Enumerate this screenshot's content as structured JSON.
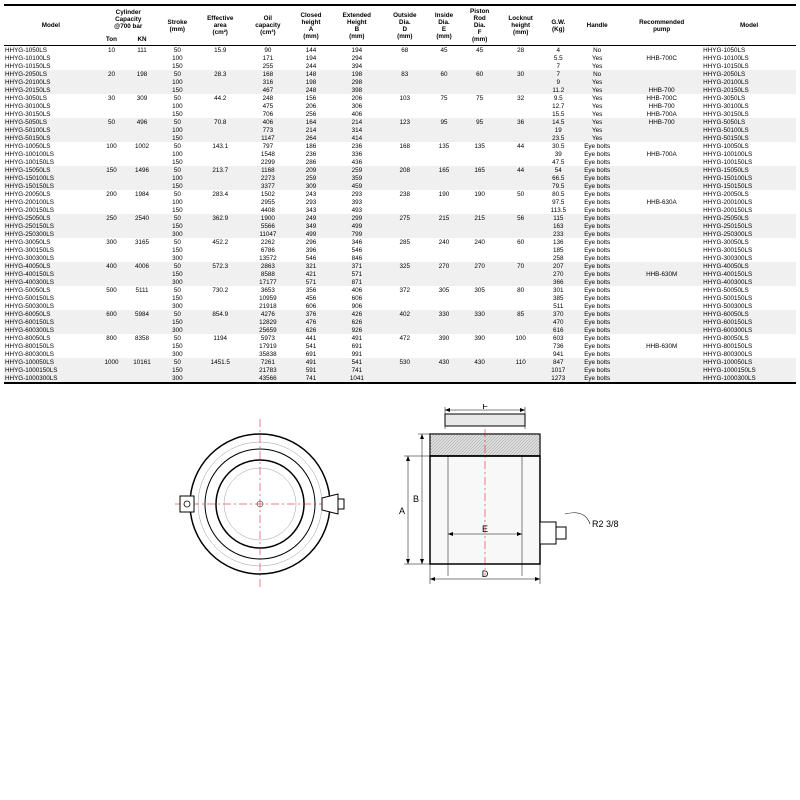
{
  "headers": [
    "Model",
    "Cylinder\nCapacity\n@700 bar",
    "",
    "Stroke\n(mm)",
    "Effective\narea\n(cm²)",
    "Oil\ncapacity\n(cm³)",
    "Closed\nheight\nA\n(mm)",
    "Extended\nHeight\nB\n(mm)",
    "Outside\nDia.\nD\n(mm)",
    "Inside\nDia.\nE\n(mm)",
    "Piston\nRod\nDia.\nF\n(mm)",
    "Locknut\nheight\n(mm)",
    "G.W.\n(Kg)",
    "Handle",
    "Recommended\npump",
    "Model"
  ],
  "sub": [
    "Ton",
    "KN"
  ],
  "rows": [
    {
      "alt": 0,
      "c": [
        "HHYG-1050LS",
        "10",
        "111",
        "50",
        "15.9",
        "90",
        "144",
        "194",
        "68",
        "45",
        "45",
        "28",
        "4",
        "No",
        "",
        "HHYG-1050LS"
      ]
    },
    {
      "alt": 0,
      "c": [
        "HHYG-10100LS",
        "",
        "",
        "100",
        "",
        "171",
        "194",
        "294",
        "",
        "",
        "",
        "",
        "5.5",
        "Yes",
        "HHB-700C",
        "HHYG-10100LS"
      ]
    },
    {
      "alt": 0,
      "c": [
        "HHYG-10150LS",
        "",
        "",
        "150",
        "",
        "255",
        "244",
        "394",
        "",
        "",
        "",
        "",
        "7",
        "Yes",
        "",
        "HHYG-10150LS"
      ]
    },
    {
      "alt": 1,
      "c": [
        "HHYG-2050LS",
        "20",
        "198",
        "50",
        "28.3",
        "168",
        "148",
        "198",
        "83",
        "60",
        "60",
        "30",
        "7",
        "No",
        "",
        "HHYG-2050LS"
      ]
    },
    {
      "alt": 1,
      "c": [
        "HHYG-20100LS",
        "",
        "",
        "100",
        "",
        "316",
        "198",
        "298",
        "",
        "",
        "",
        "",
        "9",
        "Yes",
        "",
        "HHYG-20100LS"
      ]
    },
    {
      "alt": 1,
      "c": [
        "HHYG-20150LS",
        "",
        "",
        "150",
        "",
        "467",
        "248",
        "398",
        "",
        "",
        "",
        "",
        "11.2",
        "Yes",
        "HHB-700",
        "HHYG-20150LS"
      ]
    },
    {
      "alt": 0,
      "c": [
        "HHYG-3050LS",
        "30",
        "309",
        "50",
        "44.2",
        "248",
        "156",
        "206",
        "103",
        "75",
        "75",
        "32",
        "9.5",
        "Yes",
        "HHB-700C",
        "HHYG-3050LS"
      ]
    },
    {
      "alt": 0,
      "c": [
        "HHYG-30100LS",
        "",
        "",
        "100",
        "",
        "475",
        "206",
        "306",
        "",
        "",
        "",
        "",
        "12.7",
        "Yes",
        "HHB-700",
        "HHYG-30100LS"
      ]
    },
    {
      "alt": 0,
      "c": [
        "HHYG-30150LS",
        "",
        "",
        "150",
        "",
        "706",
        "256",
        "406",
        "",
        "",
        "",
        "",
        "15.5",
        "Yes",
        "HHB-700A",
        "HHYG-30150LS"
      ]
    },
    {
      "alt": 1,
      "c": [
        "HHYG-5050LS",
        "50",
        "496",
        "50",
        "70.8",
        "406",
        "164",
        "214",
        "123",
        "95",
        "95",
        "36",
        "14.5",
        "Yes",
        "HHB-700",
        "HHYG-5050LS"
      ]
    },
    {
      "alt": 1,
      "c": [
        "HHYG-50100LS",
        "",
        "",
        "100",
        "",
        "773",
        "214",
        "314",
        "",
        "",
        "",
        "",
        "19",
        "Yes",
        "",
        "HHYG-50100LS"
      ]
    },
    {
      "alt": 1,
      "c": [
        "HHYG-50150LS",
        "",
        "",
        "150",
        "",
        "1147",
        "264",
        "414",
        "",
        "",
        "",
        "",
        "23.5",
        "Yes",
        "",
        "HHYG-50150LS"
      ]
    },
    {
      "alt": 0,
      "c": [
        "HHYG-10050LS",
        "100",
        "1002",
        "50",
        "143.1",
        "797",
        "186",
        "236",
        "168",
        "135",
        "135",
        "44",
        "30.5",
        "Eye bolts",
        "",
        "HHYG-10050LS"
      ]
    },
    {
      "alt": 0,
      "c": [
        "HHYG-100100LS",
        "",
        "",
        "100",
        "",
        "1548",
        "236",
        "336",
        "",
        "",
        "",
        "",
        "39",
        "Eye bolts",
        "HHB-700A",
        "HHYG-100100LS"
      ]
    },
    {
      "alt": 0,
      "c": [
        "HHYG-100150LS",
        "",
        "",
        "150",
        "",
        "2299",
        "286",
        "436",
        "",
        "",
        "",
        "",
        "47.5",
        "Eye bolts",
        "",
        "HHYG-100150LS"
      ]
    },
    {
      "alt": 1,
      "c": [
        "HHYG-15050LS",
        "150",
        "1496",
        "50",
        "213.7",
        "1168",
        "209",
        "259",
        "208",
        "165",
        "165",
        "44",
        "54",
        "Eye bolts",
        "",
        "HHYG-15050LS"
      ]
    },
    {
      "alt": 1,
      "c": [
        "HHYG-150100LS",
        "",
        "",
        "100",
        "",
        "2273",
        "259",
        "359",
        "",
        "",
        "",
        "",
        "66.5",
        "Eye bolts",
        "",
        "HHYG-150100LS"
      ]
    },
    {
      "alt": 1,
      "c": [
        "HHYG-150150LS",
        "",
        "",
        "150",
        "",
        "3377",
        "309",
        "459",
        "",
        "",
        "",
        "",
        "79.5",
        "Eye bolts",
        "",
        "HHYG-150150LS"
      ]
    },
    {
      "alt": 0,
      "c": [
        "HHYG-20050LS",
        "200",
        "1984",
        "50",
        "283.4",
        "1502",
        "243",
        "293",
        "238",
        "190",
        "190",
        "50",
        "80.5",
        "Eye bolts",
        "",
        "HHYG-20050LS"
      ]
    },
    {
      "alt": 0,
      "c": [
        "HHYG-200100LS",
        "",
        "",
        "100",
        "",
        "2955",
        "293",
        "393",
        "",
        "",
        "",
        "",
        "97.5",
        "Eye bolts",
        "HHB-630A",
        "HHYG-200100LS"
      ]
    },
    {
      "alt": 0,
      "c": [
        "HHYG-200150LS",
        "",
        "",
        "150",
        "",
        "4408",
        "343",
        "493",
        "",
        "",
        "",
        "",
        "113.5",
        "Eye bolts",
        "",
        "HHYG-200150LS"
      ]
    },
    {
      "alt": 1,
      "c": [
        "HHYG-25050LS",
        "250",
        "2540",
        "50",
        "362.9",
        "1900",
        "249",
        "299",
        "275",
        "215",
        "215",
        "56",
        "115",
        "Eye bolts",
        "",
        "HHYG-25050LS"
      ]
    },
    {
      "alt": 1,
      "c": [
        "HHYG-250150LS",
        "",
        "",
        "150",
        "",
        "5566",
        "349",
        "499",
        "",
        "",
        "",
        "",
        "163",
        "Eye bolts",
        "",
        "HHYG-250150LS"
      ]
    },
    {
      "alt": 1,
      "c": [
        "HHYG-250300LS",
        "",
        "",
        "300",
        "",
        "11047",
        "499",
        "799",
        "",
        "",
        "",
        "",
        "233",
        "Eye bolts",
        "",
        "HHYG-250300LS"
      ]
    },
    {
      "alt": 0,
      "c": [
        "HHYG-30050LS",
        "300",
        "3165",
        "50",
        "452.2",
        "2262",
        "296",
        "346",
        "285",
        "240",
        "240",
        "60",
        "136",
        "Eye bolts",
        "",
        "HHYG-30050LS"
      ]
    },
    {
      "alt": 0,
      "c": [
        "HHYG-300150LS",
        "",
        "",
        "150",
        "",
        "6786",
        "396",
        "546",
        "",
        "",
        "",
        "",
        "185",
        "Eye bolts",
        "",
        "HHYG-300150LS"
      ]
    },
    {
      "alt": 0,
      "c": [
        "HHYG-300300LS",
        "",
        "",
        "300",
        "",
        "13572",
        "546",
        "846",
        "",
        "",
        "",
        "",
        "258",
        "Eye bolts",
        "",
        "HHYG-300300LS"
      ]
    },
    {
      "alt": 1,
      "c": [
        "HHYG-40050LS",
        "400",
        "4006",
        "50",
        "572.3",
        "2863",
        "321",
        "371",
        "325",
        "270",
        "270",
        "70",
        "207",
        "Eye bolts",
        "",
        "HHYG-40050LS"
      ]
    },
    {
      "alt": 1,
      "c": [
        "HHYG-400150LS",
        "",
        "",
        "150",
        "",
        "8588",
        "421",
        "571",
        "",
        "",
        "",
        "",
        "270",
        "Eye bolts",
        "HHB-630M",
        "HHYG-400150LS"
      ]
    },
    {
      "alt": 1,
      "c": [
        "HHYG-400300LS",
        "",
        "",
        "300",
        "",
        "17177",
        "571",
        "871",
        "",
        "",
        "",
        "",
        "366",
        "Eye bolts",
        "",
        "HHYG-400300LS"
      ]
    },
    {
      "alt": 0,
      "c": [
        "HHYG-50050LS",
        "500",
        "5111",
        "50",
        "730.2",
        "3653",
        "356",
        "406",
        "372",
        "305",
        "305",
        "80",
        "301",
        "Eye bolts",
        "",
        "HHYG-50050LS"
      ]
    },
    {
      "alt": 0,
      "c": [
        "HHYG-500150LS",
        "",
        "",
        "150",
        "",
        "10959",
        "456",
        "606",
        "",
        "",
        "",
        "",
        "385",
        "Eye bolts",
        "",
        "HHYG-500150LS"
      ]
    },
    {
      "alt": 0,
      "c": [
        "HHYG-500300LS",
        "",
        "",
        "300",
        "",
        "21918",
        "606",
        "906",
        "",
        "",
        "",
        "",
        "511",
        "Eye bolts",
        "",
        "HHYG-500300LS"
      ]
    },
    {
      "alt": 1,
      "c": [
        "HHYG-60050LS",
        "600",
        "5984",
        "50",
        "854.9",
        "4276",
        "376",
        "426",
        "402",
        "330",
        "330",
        "85",
        "370",
        "Eye bolts",
        "",
        "HHYG-60050LS"
      ]
    },
    {
      "alt": 1,
      "c": [
        "HHYG-600150LS",
        "",
        "",
        "150",
        "",
        "12829",
        "476",
        "626",
        "",
        "",
        "",
        "",
        "470",
        "Eye bolts",
        "",
        "HHYG-600150LS"
      ]
    },
    {
      "alt": 1,
      "c": [
        "HHYG-600300LS",
        "",
        "",
        "300",
        "",
        "25659",
        "626",
        "926",
        "",
        "",
        "",
        "",
        "616",
        "Eye bolts",
        "",
        "HHYG-600300LS"
      ]
    },
    {
      "alt": 0,
      "c": [
        "HHYG-80050LS",
        "800",
        "8358",
        "50",
        "1194",
        "5973",
        "441",
        "491",
        "472",
        "390",
        "390",
        "100",
        "603",
        "Eye bolts",
        "",
        "HHYG-80050LS"
      ]
    },
    {
      "alt": 0,
      "c": [
        "HHYG-800150LS",
        "",
        "",
        "150",
        "",
        "17919",
        "541",
        "691",
        "",
        "",
        "",
        "",
        "736",
        "Eye bolts",
        "HHB-630M",
        "HHYG-800150LS"
      ]
    },
    {
      "alt": 0,
      "c": [
        "HHYG-800300LS",
        "",
        "",
        "300",
        "",
        "35838",
        "691",
        "991",
        "",
        "",
        "",
        "",
        "941",
        "Eye bolts",
        "",
        "HHYG-800300LS"
      ]
    },
    {
      "alt": 1,
      "c": [
        "HHYG-100050LS",
        "1000",
        "10161",
        "50",
        "1451.5",
        "7261",
        "491",
        "541",
        "530",
        "430",
        "430",
        "110",
        "847",
        "Eye bolts",
        "",
        "HHYG-100050LS"
      ]
    },
    {
      "alt": 1,
      "c": [
        "HHYG-1000150LS",
        "",
        "",
        "150",
        "",
        "21783",
        "591",
        "741",
        "",
        "",
        "",
        "",
        "1017",
        "Eye bolts",
        "",
        "HHYG-1000150LS"
      ]
    },
    {
      "alt": 1,
      "c": [
        "HHYG-1000300LS",
        "",
        "",
        "300",
        "",
        "43566",
        "741",
        "1041",
        "",
        "",
        "",
        "",
        "1273",
        "Eye bolts",
        "",
        "HHYG-1000300LS"
      ]
    }
  ],
  "diagram": {
    "labels": {
      "A": "A",
      "B": "B",
      "D": "D",
      "E": "E",
      "F": "F",
      "R": "R2 3/8"
    }
  }
}
